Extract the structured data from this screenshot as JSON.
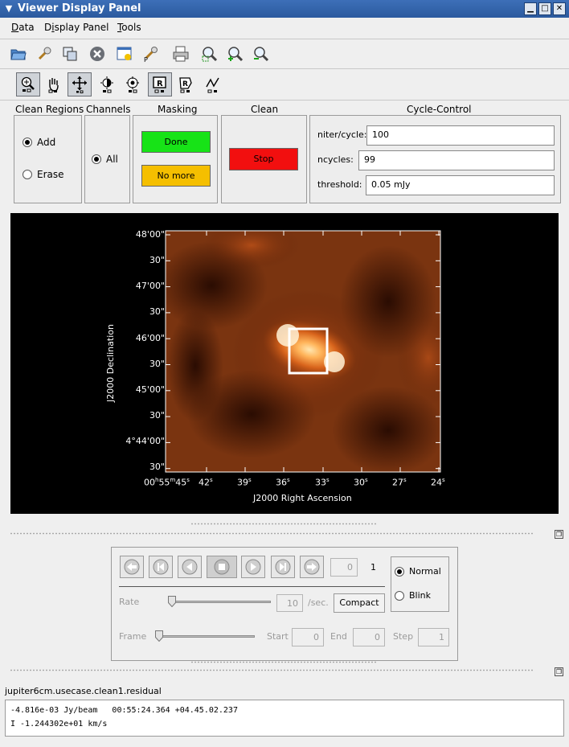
{
  "window": {
    "title": "Viewer Display Panel"
  },
  "menubar": {
    "items": [
      {
        "label": "Data"
      },
      {
        "label": "Display Panel"
      },
      {
        "label": "Tools"
      }
    ]
  },
  "toolbar_icons": [
    "open-folder-icon",
    "wrench-icon",
    "copy-icon",
    "close-circle-icon",
    "new-panel-icon",
    "preferences-icon",
    "print-icon",
    "zoom-fit-icon",
    "zoom-in-icon",
    "zoom-out-icon"
  ],
  "tool_icons": [
    "zoom-tool-icon",
    "pan-hand-icon",
    "crosshair-move-icon",
    "contrast-icon",
    "color-map-icon",
    "rectangle-region-icon",
    "polygon-region-icon",
    "polyline-icon"
  ],
  "clean_regions": {
    "title": "Clean Regions",
    "add": "Add",
    "erase": "Erase",
    "selected": "Add"
  },
  "channels": {
    "title": "Channels",
    "all": "All"
  },
  "masking": {
    "title": "Masking",
    "done": "Done",
    "no_more": "No more",
    "done_color": "#17e317",
    "no_more_color": "#f5bf00"
  },
  "clean": {
    "title": "Clean",
    "stop": "Stop",
    "stop_color": "#f20f0f"
  },
  "cycle_control": {
    "title": "Cycle-Control",
    "niter_label": "niter/cycle:",
    "niter_value": "100",
    "ncycles_label": "ncycles:",
    "ncycles_value": "99",
    "threshold_label": "threshold:",
    "threshold_value": "0.05 mJy"
  },
  "image": {
    "ylabel": "J2000 Declination",
    "xlabel": "J2000 Right Ascension",
    "yticks": [
      "48'00\"",
      "30\"",
      "47'00\"",
      "30\"",
      "46'00\"",
      "30\"",
      "45'00\"",
      "30\"",
      "4°44'00\"",
      "30\""
    ],
    "xticks": [
      "00h55m45s",
      "42s",
      "39s",
      "36s",
      "33s",
      "30s",
      "27s",
      "24s"
    ],
    "xtick_display": [
      {
        "text": "00",
        "sup": "h"
      },
      {
        "text": "55",
        "sup": "m"
      },
      {
        "text": "45",
        "sup": "s"
      }
    ]
  },
  "animator": {
    "frame_number": "0",
    "total": "1",
    "rate_label": "Rate",
    "rate_value": "10",
    "rate_unit": "/sec.",
    "compact": "Compact",
    "normal": "Normal",
    "blink": "Blink",
    "mode_selected": "Normal",
    "frame_label": "Frame",
    "start_label": "Start",
    "start_value": "0",
    "end_label": "End",
    "end_value": "0",
    "step_label": "Step",
    "step_value": "1"
  },
  "status": {
    "image_name": "jupiter6cm.usecase.clean1.residual",
    "line1": "-4.816e-03 Jy/beam   00:55:24.364 +04.45.02.237",
    "line2": "I -1.244302e+01 km/s"
  }
}
